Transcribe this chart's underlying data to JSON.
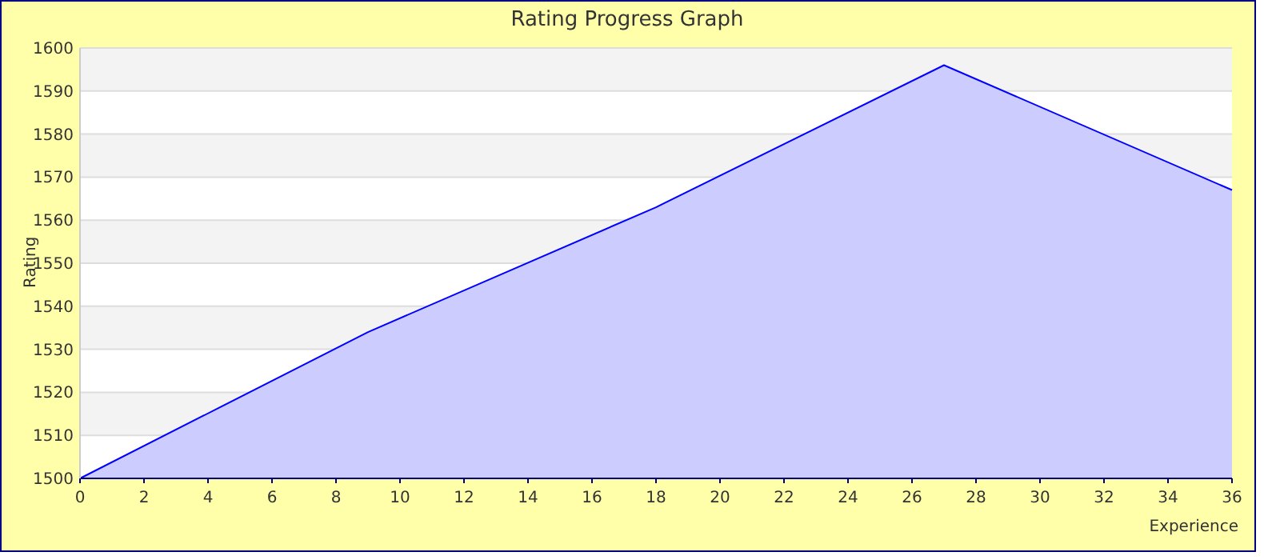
{
  "chart_data": {
    "type": "area",
    "title": "Rating Progress Graph",
    "xlabel": "Experience",
    "ylabel": "Rating",
    "x": [
      0,
      9,
      18,
      27,
      36
    ],
    "series": [
      {
        "color": "#0000ff",
        "values": [
          1500,
          1534,
          1563,
          1596,
          1567
        ]
      }
    ],
    "xlim": [
      0,
      36
    ],
    "xticks": [
      0,
      2,
      4,
      6,
      8,
      10,
      12,
      14,
      16,
      18,
      20,
      22,
      24,
      26,
      28,
      30,
      32,
      34,
      36
    ],
    "ylim": [
      1500,
      1600
    ],
    "yticks": [
      1500,
      1510,
      1520,
      1530,
      1540,
      1550,
      1560,
      1570,
      1580,
      1590,
      1600
    ],
    "grid": "y"
  }
}
